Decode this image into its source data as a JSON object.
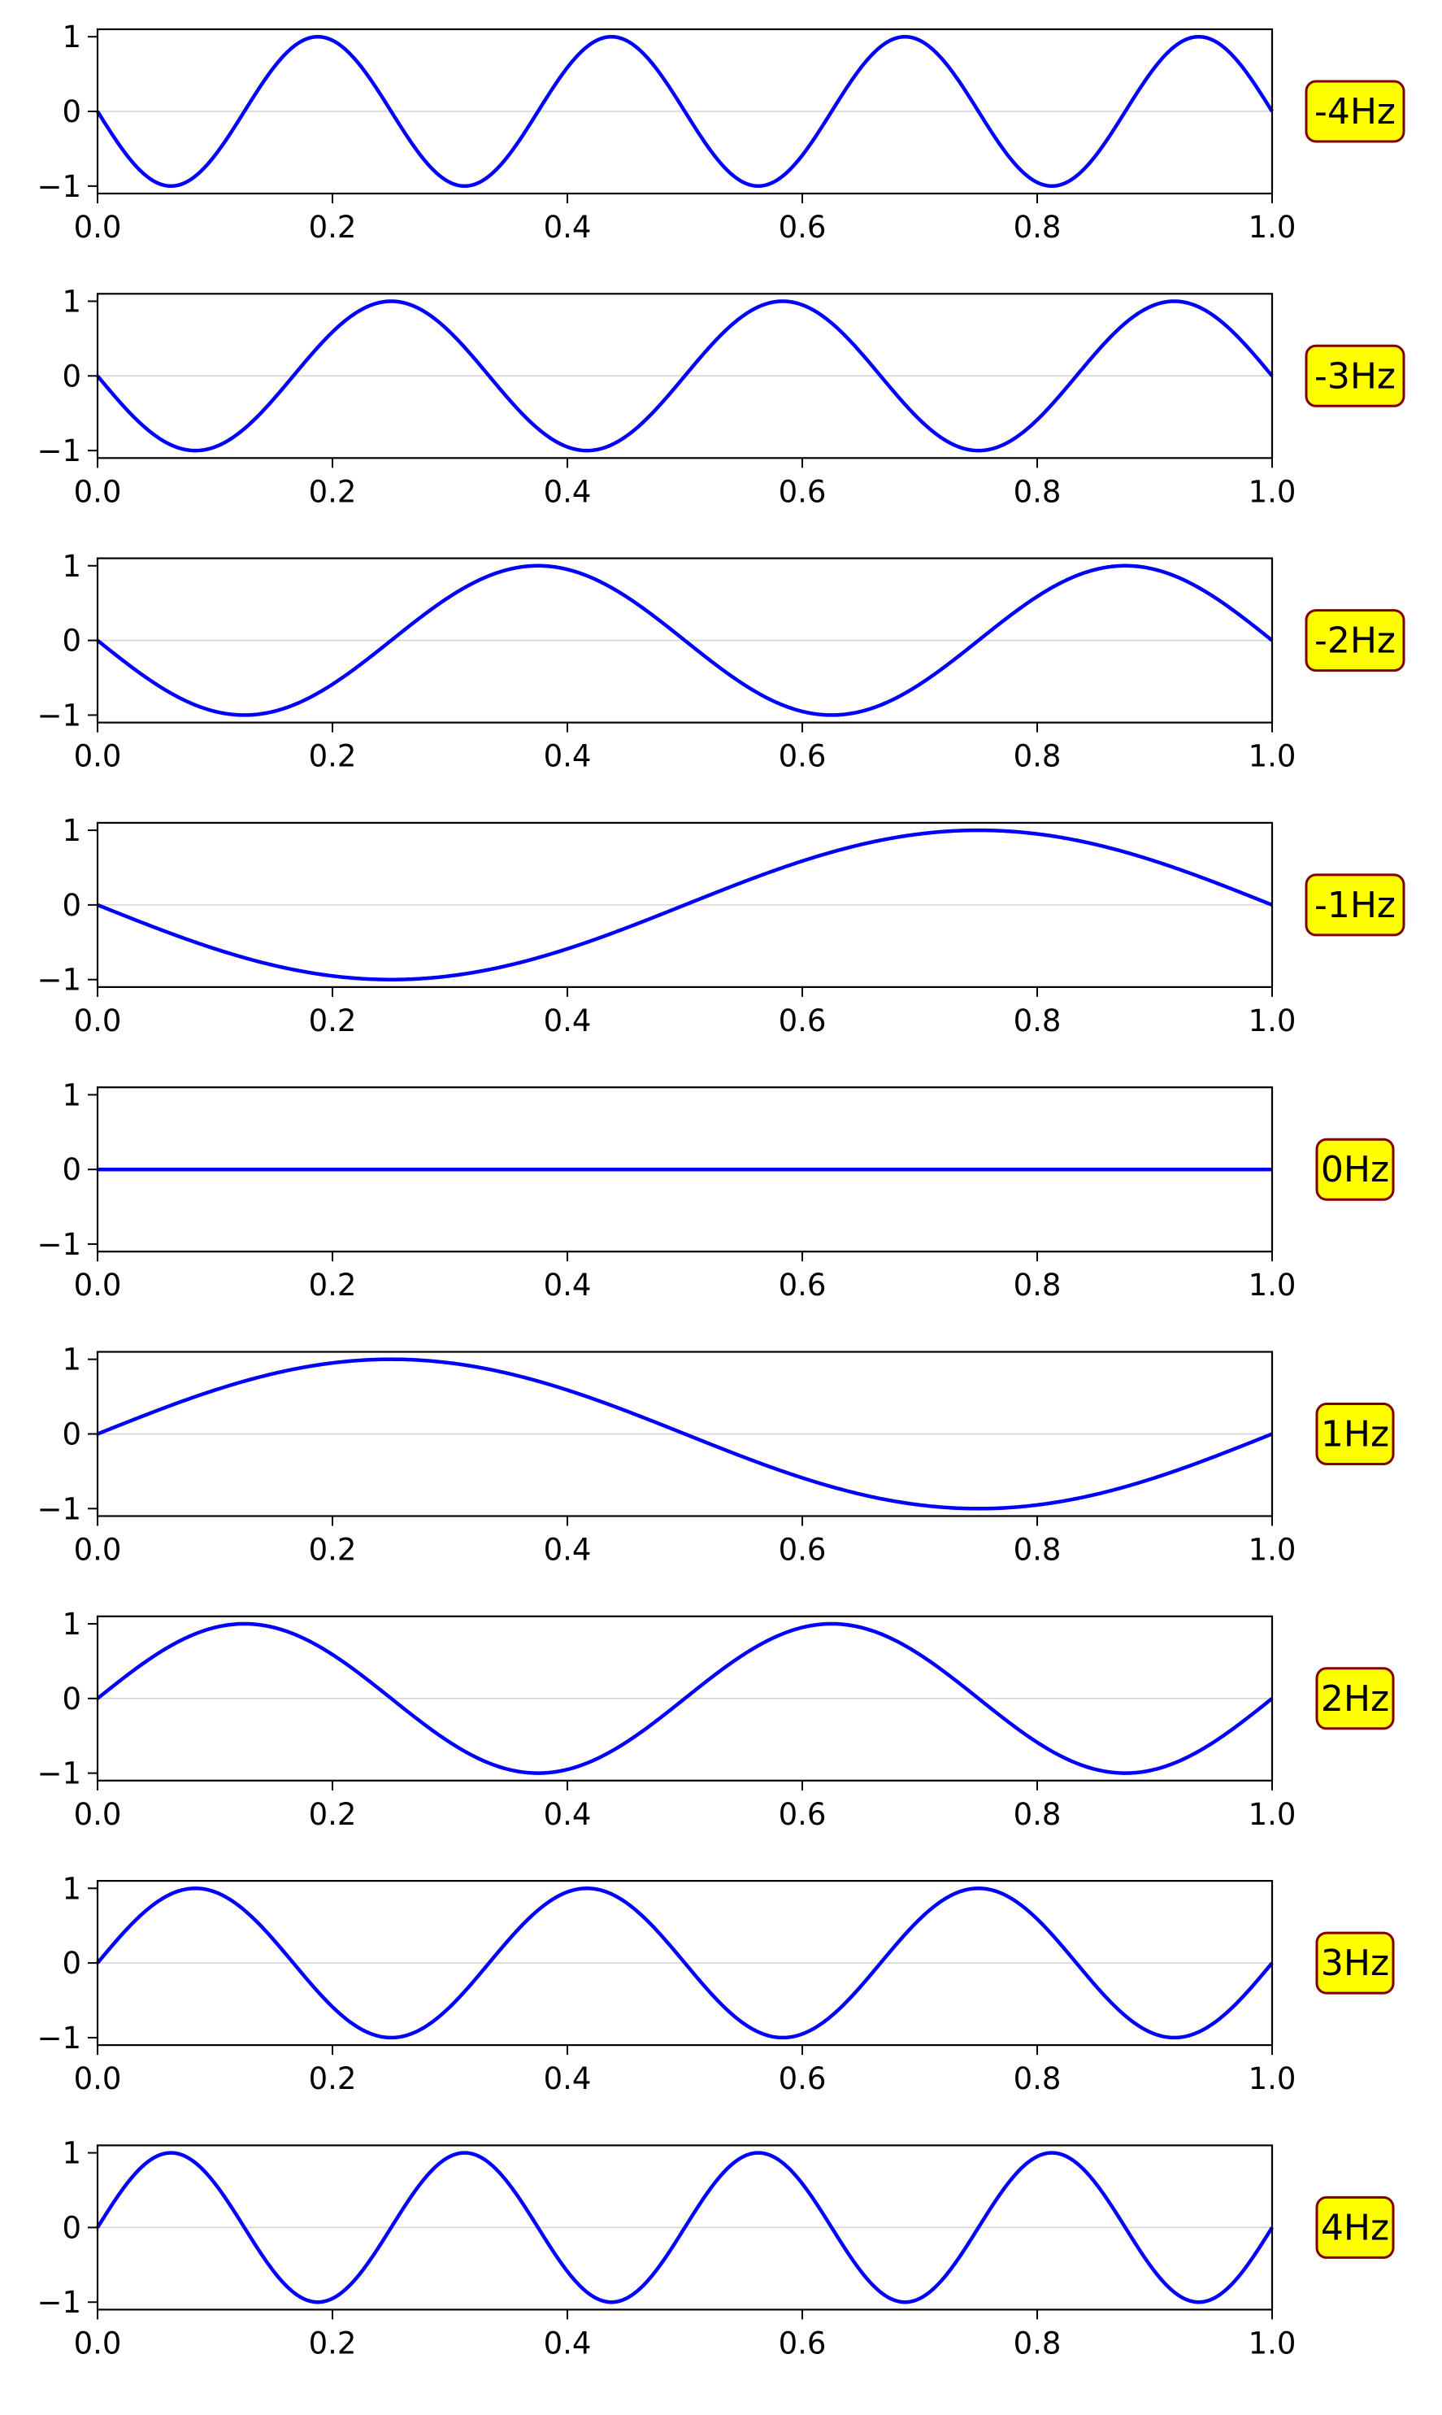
{
  "chart_data": [
    {
      "type": "line",
      "function": "sin(2*pi*f*x)",
      "frequency": -4,
      "label": "-4Hz",
      "xlim": [
        0.0,
        1.0
      ],
      "ylim": [
        -1.1,
        1.1
      ],
      "xticks": [
        "0.0",
        "0.2",
        "0.4",
        "0.6",
        "0.8",
        "1.0"
      ],
      "yticks": [
        "1",
        "0",
        "−1"
      ],
      "zero_line": true,
      "line_color": "#0000ff"
    },
    {
      "type": "line",
      "function": "sin(2*pi*f*x)",
      "frequency": -3,
      "label": "-3Hz",
      "xlim": [
        0.0,
        1.0
      ],
      "ylim": [
        -1.1,
        1.1
      ],
      "xticks": [
        "0.0",
        "0.2",
        "0.4",
        "0.6",
        "0.8",
        "1.0"
      ],
      "yticks": [
        "1",
        "0",
        "−1"
      ],
      "zero_line": true,
      "line_color": "#0000ff"
    },
    {
      "type": "line",
      "function": "sin(2*pi*f*x)",
      "frequency": -2,
      "label": "-2Hz",
      "xlim": [
        0.0,
        1.0
      ],
      "ylim": [
        -1.1,
        1.1
      ],
      "xticks": [
        "0.0",
        "0.2",
        "0.4",
        "0.6",
        "0.8",
        "1.0"
      ],
      "yticks": [
        "1",
        "0",
        "−1"
      ],
      "zero_line": true,
      "line_color": "#0000ff"
    },
    {
      "type": "line",
      "function": "sin(2*pi*f*x)",
      "frequency": -1,
      "label": "-1Hz",
      "xlim": [
        0.0,
        1.0
      ],
      "ylim": [
        -1.1,
        1.1
      ],
      "xticks": [
        "0.0",
        "0.2",
        "0.4",
        "0.6",
        "0.8",
        "1.0"
      ],
      "yticks": [
        "1",
        "0",
        "−1"
      ],
      "zero_line": true,
      "line_color": "#0000ff"
    },
    {
      "type": "line",
      "function": "sin(2*pi*f*x)",
      "frequency": 0,
      "label": "0Hz",
      "xlim": [
        0.0,
        1.0
      ],
      "ylim": [
        -1.1,
        1.1
      ],
      "xticks": [
        "0.0",
        "0.2",
        "0.4",
        "0.6",
        "0.8",
        "1.0"
      ],
      "yticks": [
        "1",
        "0",
        "−1"
      ],
      "zero_line": true,
      "line_color": "#0000ff"
    },
    {
      "type": "line",
      "function": "sin(2*pi*f*x)",
      "frequency": 1,
      "label": "1Hz",
      "xlim": [
        0.0,
        1.0
      ],
      "ylim": [
        -1.1,
        1.1
      ],
      "xticks": [
        "0.0",
        "0.2",
        "0.4",
        "0.6",
        "0.8",
        "1.0"
      ],
      "yticks": [
        "1",
        "0",
        "−1"
      ],
      "zero_line": true,
      "line_color": "#0000ff"
    },
    {
      "type": "line",
      "function": "sin(2*pi*f*x)",
      "frequency": 2,
      "label": "2Hz",
      "xlim": [
        0.0,
        1.0
      ],
      "ylim": [
        -1.1,
        1.1
      ],
      "xticks": [
        "0.0",
        "0.2",
        "0.4",
        "0.6",
        "0.8",
        "1.0"
      ],
      "yticks": [
        "1",
        "0",
        "−1"
      ],
      "zero_line": true,
      "line_color": "#0000ff"
    },
    {
      "type": "line",
      "function": "sin(2*pi*f*x)",
      "frequency": 3,
      "label": "3Hz",
      "xlim": [
        0.0,
        1.0
      ],
      "ylim": [
        -1.1,
        1.1
      ],
      "xticks": [
        "0.0",
        "0.2",
        "0.4",
        "0.6",
        "0.8",
        "1.0"
      ],
      "yticks": [
        "1",
        "0",
        "−1"
      ],
      "zero_line": true,
      "line_color": "#0000ff"
    },
    {
      "type": "line",
      "function": "sin(2*pi*f*x)",
      "frequency": 4,
      "label": "4Hz",
      "xlim": [
        0.0,
        1.0
      ],
      "ylim": [
        -1.1,
        1.1
      ],
      "xticks": [
        "0.0",
        "0.2",
        "0.4",
        "0.6",
        "0.8",
        "1.0"
      ],
      "yticks": [
        "1",
        "0",
        "−1"
      ],
      "zero_line": true,
      "line_color": "#0000ff"
    }
  ],
  "style": {
    "label_box_fill": "#ffff00",
    "label_box_edge": "#800000",
    "zero_line_color": "#d3d3d3",
    "axis_color": "#000000"
  }
}
